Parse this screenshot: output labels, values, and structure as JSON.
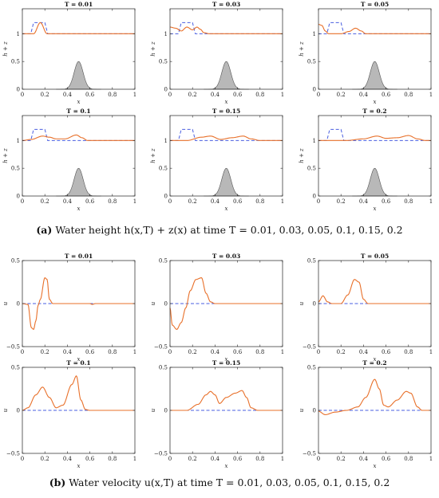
{
  "figure": {
    "caption_a": {
      "tag": "(a)",
      "text": "Water height h(x,T) + z(x) at time T = 0.01, 0.03, 0.05, 0.1, 0.15, 0.2"
    },
    "caption_b": {
      "tag": "(b)",
      "text": "Water velocity u(x,T) at time T = 0.01, 0.03, 0.05, 0.1, 0.15, 0.2"
    }
  },
  "colors": {
    "solution": "#e8702a",
    "initial": "#4a5fe0",
    "bump": "#b8b8b8",
    "axis": "#222222"
  },
  "chart_data": [
    {
      "group": "a",
      "type": "line",
      "title": "T = 0.01",
      "xlabel": "x",
      "ylabel": "h + z",
      "xlim": [
        0,
        1
      ],
      "ylim": [
        0,
        1.45
      ],
      "xticks": [
        0,
        0.2,
        0.4,
        0.6,
        0.8,
        1
      ],
      "yticks": [
        0,
        0.5,
        1
      ],
      "ytick_labels": [
        "0",
        "0.5",
        "1"
      ],
      "solution_center": 0.16,
      "solution_amp": 0.2,
      "solution_width": 0.12,
      "initial_hump": [
        0.1,
        0.2,
        0.2
      ],
      "bump": {
        "center": 0.5,
        "height": 0.5,
        "sigma": 0.04
      }
    },
    {
      "group": "a",
      "type": "line",
      "title": "T = 0.03",
      "xlabel": "x",
      "ylabel": "h + z",
      "xlim": [
        0,
        1
      ],
      "ylim": [
        0,
        1.45
      ],
      "xticks": [
        0,
        0.2,
        0.4,
        0.6,
        0.8,
        1
      ],
      "yticks": [
        0,
        0.5,
        1
      ],
      "ytick_labels": [
        "0",
        "0.5",
        "1"
      ],
      "points": [
        [
          0,
          1.12
        ],
        [
          0.05,
          1.1
        ],
        [
          0.1,
          1.05
        ],
        [
          0.15,
          1.12
        ],
        [
          0.2,
          1.07
        ],
        [
          0.24,
          1.12
        ],
        [
          0.27,
          1.08
        ],
        [
          0.3,
          1.02
        ],
        [
          0.35,
          1.0
        ],
        [
          1,
          1.0
        ]
      ],
      "initial_hump": [
        0.1,
        0.2,
        0.2
      ],
      "bump": {
        "center": 0.5,
        "height": 0.5,
        "sigma": 0.04
      }
    },
    {
      "group": "a",
      "type": "line",
      "title": "T = 0.05",
      "xlabel": "x",
      "ylabel": "h + z",
      "xlim": [
        0,
        1
      ],
      "ylim": [
        0,
        1.45
      ],
      "xticks": [
        0,
        0.2,
        0.4,
        0.6,
        0.8,
        1
      ],
      "yticks": [
        0,
        0.5,
        1
      ],
      "ytick_labels": [
        "0",
        "0.5",
        "1"
      ],
      "points": [
        [
          0,
          1.17
        ],
        [
          0.03,
          1.15
        ],
        [
          0.06,
          1.05
        ],
        [
          0.09,
          1.0
        ],
        [
          0.2,
          1.0
        ],
        [
          0.27,
          1.04
        ],
        [
          0.33,
          1.1
        ],
        [
          0.38,
          1.05
        ],
        [
          0.42,
          1.0
        ],
        [
          1,
          1.0
        ]
      ],
      "initial_hump": [
        0.1,
        0.2,
        0.2
      ],
      "bump": {
        "center": 0.5,
        "height": 0.5,
        "sigma": 0.04
      }
    },
    {
      "group": "a",
      "type": "line",
      "title": "T = 0.1",
      "xlabel": "x",
      "ylabel": "h + z",
      "xlim": [
        0,
        1
      ],
      "ylim": [
        0,
        1.45
      ],
      "xticks": [
        0,
        0.2,
        0.4,
        0.6,
        0.8,
        1
      ],
      "yticks": [
        0,
        0.5,
        1
      ],
      "ytick_labels": [
        "0",
        "0.5",
        "1"
      ],
      "points": [
        [
          0,
          1.0
        ],
        [
          0.08,
          1.02
        ],
        [
          0.18,
          1.08
        ],
        [
          0.24,
          1.06
        ],
        [
          0.3,
          1.03
        ],
        [
          0.38,
          1.03
        ],
        [
          0.48,
          1.1
        ],
        [
          0.53,
          1.05
        ],
        [
          0.58,
          1.0
        ],
        [
          1,
          1.0
        ]
      ],
      "initial_hump": [
        0.1,
        0.2,
        0.2
      ],
      "bump": {
        "center": 0.5,
        "height": 0.5,
        "sigma": 0.04
      }
    },
    {
      "group": "a",
      "type": "line",
      "title": "T = 0.15",
      "xlabel": "x",
      "ylabel": "h + z",
      "xlim": [
        0,
        1
      ],
      "ylim": [
        0,
        1.45
      ],
      "xticks": [
        0,
        0.2,
        0.4,
        0.6,
        0.8,
        1
      ],
      "yticks": [
        0,
        0.5,
        1
      ],
      "ytick_labels": [
        "0",
        "0.5",
        "1"
      ],
      "points": [
        [
          0,
          1.0
        ],
        [
          0.15,
          1.0
        ],
        [
          0.28,
          1.06
        ],
        [
          0.36,
          1.08
        ],
        [
          0.45,
          1.02
        ],
        [
          0.55,
          1.05
        ],
        [
          0.65,
          1.08
        ],
        [
          0.72,
          1.03
        ],
        [
          0.8,
          1.0
        ],
        [
          1,
          1.0
        ]
      ],
      "initial_hump": [
        0.1,
        0.2,
        0.2
      ],
      "bump": {
        "center": 0.5,
        "height": 0.5,
        "sigma": 0.04
      }
    },
    {
      "group": "a",
      "type": "line",
      "title": "T = 0.2",
      "xlabel": "x",
      "ylabel": "h + z",
      "xlim": [
        0,
        1
      ],
      "ylim": [
        0,
        1.45
      ],
      "xticks": [
        0,
        0.2,
        0.4,
        0.6,
        0.8,
        1
      ],
      "yticks": [
        0,
        0.5,
        1
      ],
      "ytick_labels": [
        "0",
        "0.5",
        "1"
      ],
      "points": [
        [
          0,
          1.0
        ],
        [
          0.25,
          1.0
        ],
        [
          0.4,
          1.03
        ],
        [
          0.52,
          1.08
        ],
        [
          0.6,
          1.04
        ],
        [
          0.7,
          1.05
        ],
        [
          0.8,
          1.09
        ],
        [
          0.88,
          1.03
        ],
        [
          0.95,
          1.0
        ],
        [
          1,
          1.0
        ]
      ],
      "initial_hump": [
        0.1,
        0.2,
        0.2
      ],
      "bump": {
        "center": 0.5,
        "height": 0.5,
        "sigma": 0.04
      }
    },
    {
      "group": "b",
      "type": "line",
      "title": "T = 0.01",
      "xlabel": "x",
      "ylabel": "u",
      "xlim": [
        0,
        1
      ],
      "ylim": [
        -0.5,
        0.5
      ],
      "xticks": [
        0,
        0.2,
        0.4,
        0.6,
        0.8,
        1
      ],
      "yticks": [
        -0.5,
        0,
        0.5
      ],
      "ytick_labels": [
        "−0.5",
        "0",
        "0.5"
      ],
      "points": [
        [
          0,
          0
        ],
        [
          0.05,
          -0.01
        ],
        [
          0.08,
          -0.28
        ],
        [
          0.1,
          -0.3
        ],
        [
          0.12,
          -0.2
        ],
        [
          0.14,
          -0.02
        ],
        [
          0.16,
          0.05
        ],
        [
          0.2,
          0.3
        ],
        [
          0.22,
          0.28
        ],
        [
          0.24,
          0.05
        ],
        [
          0.27,
          0
        ],
        [
          0.6,
          0
        ],
        [
          0.62,
          -0.01
        ],
        [
          0.65,
          0
        ],
        [
          1,
          0
        ]
      ]
    },
    {
      "group": "b",
      "type": "line",
      "title": "T = 0.03",
      "xlabel": "x",
      "ylabel": "u",
      "xlim": [
        0,
        1
      ],
      "ylim": [
        -0.5,
        0.5
      ],
      "xticks": [
        0,
        0.2,
        0.4,
        0.6,
        0.8,
        1
      ],
      "yticks": [
        -0.5,
        0,
        0.5
      ],
      "ytick_labels": [
        "−0.5",
        "0",
        "0.5"
      ],
      "points": [
        [
          0,
          -0.05
        ],
        [
          0.02,
          -0.25
        ],
        [
          0.06,
          -0.3
        ],
        [
          0.1,
          -0.22
        ],
        [
          0.14,
          -0.05
        ],
        [
          0.18,
          0.15
        ],
        [
          0.23,
          0.28
        ],
        [
          0.28,
          0.3
        ],
        [
          0.32,
          0.12
        ],
        [
          0.36,
          0.02
        ],
        [
          0.4,
          0
        ],
        [
          1,
          0
        ]
      ]
    },
    {
      "group": "b",
      "type": "line",
      "title": "T = 0.05",
      "xlabel": "x",
      "ylabel": "u",
      "xlim": [
        0,
        1
      ],
      "ylim": [
        -0.5,
        0.5
      ],
      "xticks": [
        0,
        0.2,
        0.4,
        0.6,
        0.8,
        1
      ],
      "yticks": [
        -0.5,
        0,
        0.5
      ],
      "ytick_labels": [
        "−0.5",
        "0",
        "0.5"
      ],
      "points": [
        [
          0,
          0.02
        ],
        [
          0.04,
          0.09
        ],
        [
          0.08,
          0.02
        ],
        [
          0.12,
          0.0
        ],
        [
          0.2,
          0.0
        ],
        [
          0.26,
          0.1
        ],
        [
          0.32,
          0.28
        ],
        [
          0.36,
          0.25
        ],
        [
          0.4,
          0.05
        ],
        [
          0.44,
          0.0
        ],
        [
          1,
          0
        ]
      ]
    },
    {
      "group": "b",
      "type": "line",
      "title": "T = 0.1",
      "xlabel": "x",
      "ylabel": "u",
      "xlim": [
        0,
        1
      ],
      "ylim": [
        -0.5,
        0.5
      ],
      "xticks": [
        0,
        0.2,
        0.4,
        0.6,
        0.8,
        1
      ],
      "yticks": [
        -0.5,
        0,
        0.5
      ],
      "ytick_labels": [
        "−0.5",
        "0",
        "0.5"
      ],
      "points": [
        [
          0,
          0.0
        ],
        [
          0.05,
          0.03
        ],
        [
          0.12,
          0.18
        ],
        [
          0.18,
          0.27
        ],
        [
          0.24,
          0.15
        ],
        [
          0.3,
          0.03
        ],
        [
          0.36,
          0.06
        ],
        [
          0.44,
          0.3
        ],
        [
          0.48,
          0.4
        ],
        [
          0.52,
          0.12
        ],
        [
          0.56,
          0.01
        ],
        [
          0.6,
          0
        ],
        [
          1,
          0
        ]
      ]
    },
    {
      "group": "b",
      "type": "line",
      "title": "T = 0.15",
      "xlabel": "x",
      "ylabel": "u",
      "xlim": [
        0,
        1
      ],
      "ylim": [
        -0.5,
        0.5
      ],
      "xticks": [
        0,
        0.2,
        0.4,
        0.6,
        0.8,
        1
      ],
      "yticks": [
        -0.5,
        0,
        0.5
      ],
      "ytick_labels": [
        "−0.5",
        "0",
        "0.5"
      ],
      "points": [
        [
          0,
          0
        ],
        [
          0.15,
          0.0
        ],
        [
          0.25,
          0.07
        ],
        [
          0.32,
          0.18
        ],
        [
          0.36,
          0.22
        ],
        [
          0.4,
          0.18
        ],
        [
          0.44,
          0.08
        ],
        [
          0.5,
          0.15
        ],
        [
          0.58,
          0.2
        ],
        [
          0.64,
          0.23
        ],
        [
          0.68,
          0.15
        ],
        [
          0.72,
          0.03
        ],
        [
          0.78,
          0
        ],
        [
          1,
          0
        ]
      ]
    },
    {
      "group": "b",
      "type": "line",
      "title": "T = 0.2",
      "xlabel": "x",
      "ylabel": "u",
      "xlim": [
        0,
        1
      ],
      "ylim": [
        -0.5,
        0.5
      ],
      "xticks": [
        0,
        0.2,
        0.4,
        0.6,
        0.8,
        1
      ],
      "yticks": [
        -0.5,
        0,
        0.5
      ],
      "ytick_labels": [
        "−0.5",
        "0",
        "0.5"
      ],
      "points": [
        [
          0,
          -0.01
        ],
        [
          0.06,
          -0.05
        ],
        [
          0.15,
          -0.02
        ],
        [
          0.25,
          0.0
        ],
        [
          0.35,
          0.04
        ],
        [
          0.42,
          0.15
        ],
        [
          0.5,
          0.36
        ],
        [
          0.54,
          0.25
        ],
        [
          0.58,
          0.06
        ],
        [
          0.62,
          0.04
        ],
        [
          0.7,
          0.12
        ],
        [
          0.78,
          0.22
        ],
        [
          0.82,
          0.2
        ],
        [
          0.88,
          0.04
        ],
        [
          0.92,
          0
        ],
        [
          1,
          0
        ]
      ]
    }
  ]
}
